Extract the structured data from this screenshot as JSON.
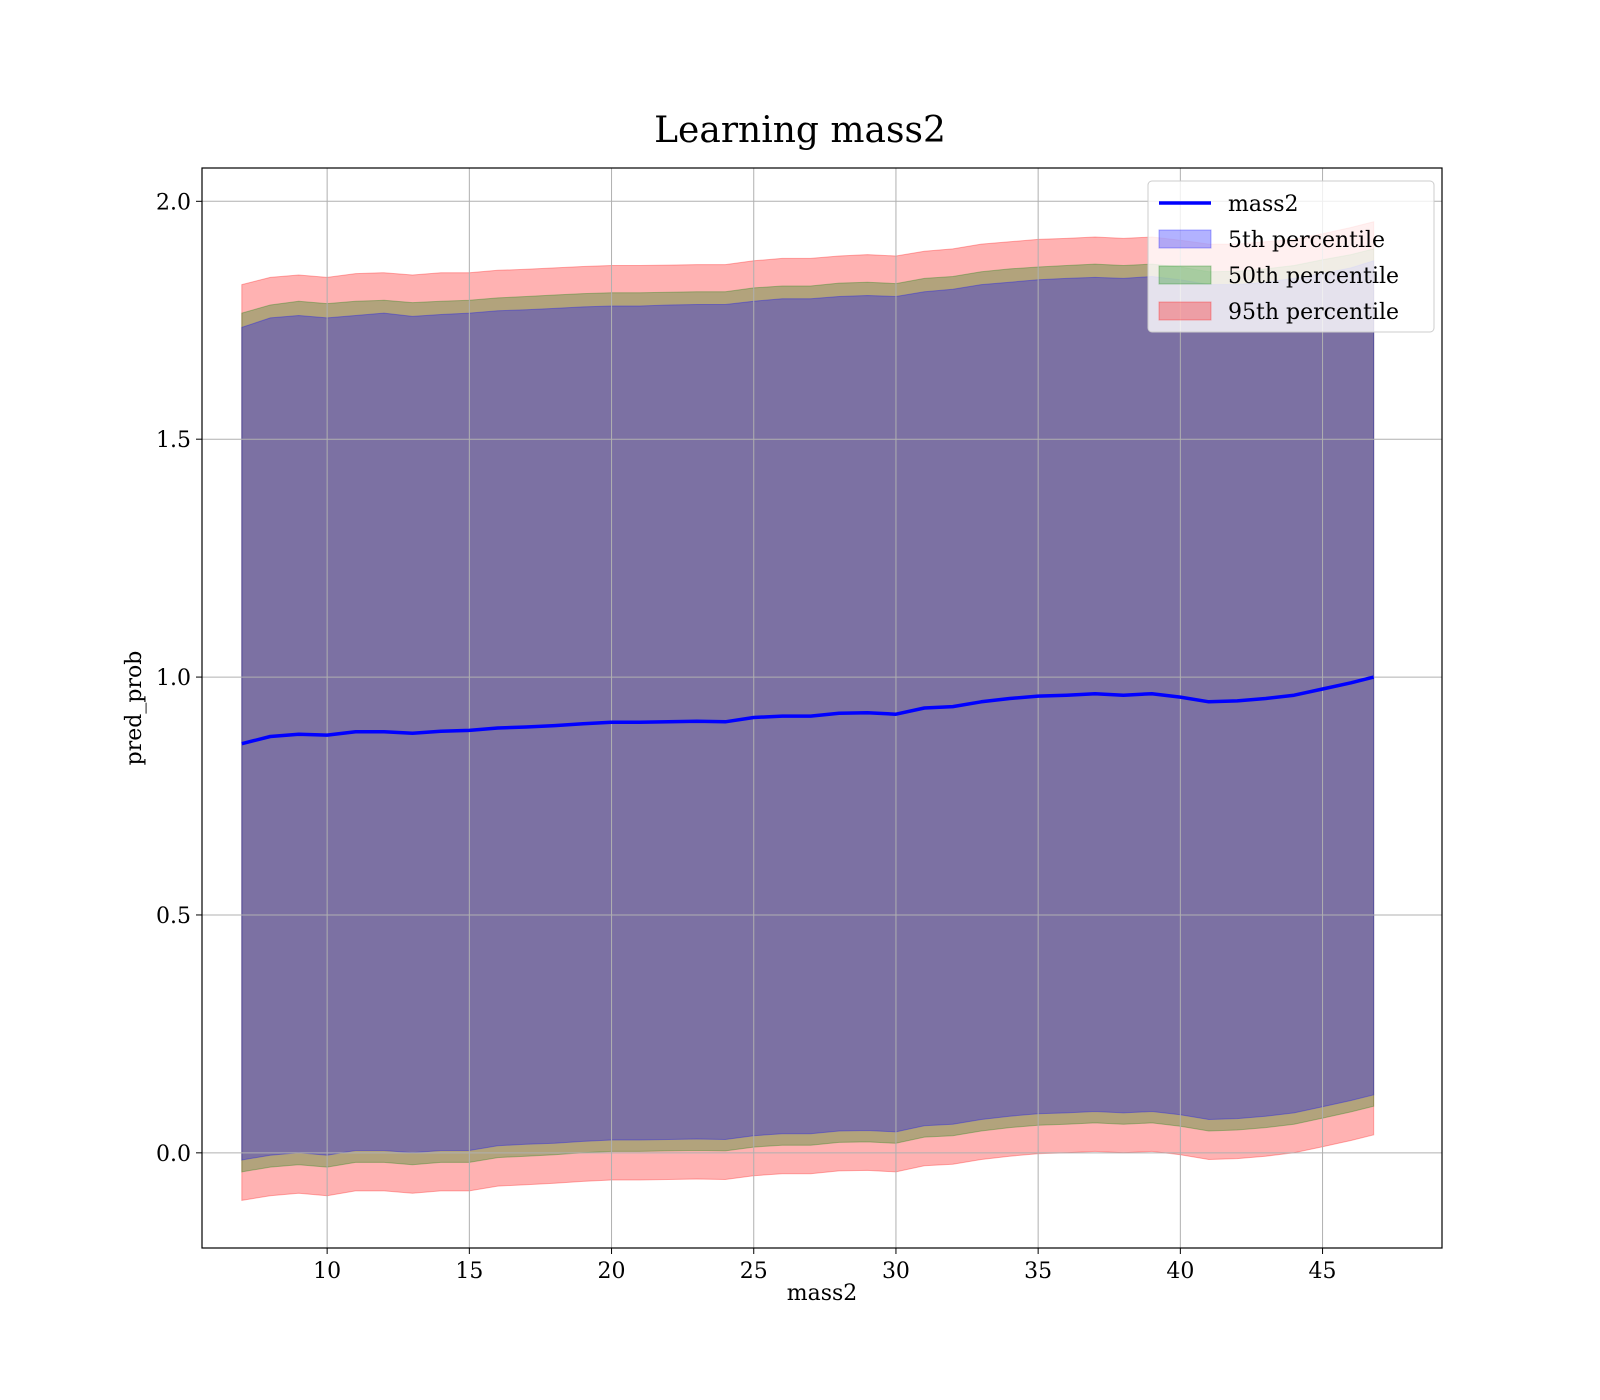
{
  "chart_data": {
    "type": "area",
    "title": "Learning mass2",
    "xlabel": "mass2",
    "ylabel": "pred_prob",
    "xlim": [
      5.6,
      49.2
    ],
    "ylim": [
      -0.2,
      2.07
    ],
    "xticks": [
      10,
      15,
      20,
      25,
      30,
      35,
      40,
      45
    ],
    "yticks": [
      0.0,
      0.5,
      1.0,
      1.5,
      2.0
    ],
    "grid": true,
    "legend_position": "top-right",
    "x": [
      7.0,
      8.0,
      9.0,
      10.0,
      11.0,
      12.0,
      13.0,
      14.0,
      15.0,
      16.0,
      17.0,
      18.0,
      19.0,
      20.0,
      21.0,
      22.0,
      23.0,
      24.0,
      25.0,
      26.0,
      27.0,
      28.0,
      29.0,
      30.0,
      31.0,
      32.0,
      33.0,
      34.0,
      35.0,
      36.0,
      37.0,
      38.0,
      39.0,
      40.0,
      41.0,
      42.0,
      43.0,
      44.0,
      45.0,
      46.0,
      46.8
    ],
    "series": [
      {
        "name": "mass2",
        "kind": "line",
        "color": "#0000ff",
        "values": [
          0.86,
          0.875,
          0.88,
          0.878,
          0.885,
          0.885,
          0.882,
          0.886,
          0.888,
          0.893,
          0.895,
          0.898,
          0.902,
          0.905,
          0.905,
          0.906,
          0.907,
          0.906,
          0.915,
          0.918,
          0.918,
          0.924,
          0.925,
          0.922,
          0.935,
          0.938,
          0.948,
          0.955,
          0.96,
          0.962,
          0.965,
          0.962,
          0.965,
          0.958,
          0.948,
          0.95,
          0.955,
          0.962,
          0.975,
          0.988,
          1.0
        ]
      },
      {
        "name": "5th percentile",
        "kind": "band",
        "color": "#0000ff",
        "upper": [
          1.735,
          1.755,
          1.76,
          1.755,
          1.76,
          1.765,
          1.758,
          1.762,
          1.765,
          1.77,
          1.772,
          1.775,
          1.778,
          1.78,
          1.78,
          1.782,
          1.783,
          1.783,
          1.79,
          1.795,
          1.795,
          1.8,
          1.802,
          1.8,
          1.81,
          1.815,
          1.825,
          1.83,
          1.835,
          1.838,
          1.84,
          1.838,
          1.842,
          1.835,
          1.825,
          1.825,
          1.83,
          1.838,
          1.848,
          1.86,
          1.875
        ],
        "lower": [
          -0.015,
          -0.005,
          0.0,
          -0.005,
          0.005,
          0.005,
          0.0,
          0.005,
          0.005,
          0.015,
          0.018,
          0.02,
          0.024,
          0.027,
          0.027,
          0.028,
          0.029,
          0.028,
          0.036,
          0.04,
          0.04,
          0.046,
          0.047,
          0.044,
          0.057,
          0.06,
          0.07,
          0.077,
          0.082,
          0.084,
          0.087,
          0.084,
          0.087,
          0.08,
          0.07,
          0.072,
          0.077,
          0.084,
          0.097,
          0.11,
          0.122
        ]
      },
      {
        "name": "50th percentile",
        "kind": "band",
        "color": "#008000",
        "upper": [
          1.765,
          1.782,
          1.79,
          1.785,
          1.79,
          1.792,
          1.787,
          1.79,
          1.792,
          1.797,
          1.8,
          1.803,
          1.806,
          1.808,
          1.808,
          1.809,
          1.81,
          1.81,
          1.818,
          1.822,
          1.822,
          1.828,
          1.83,
          1.827,
          1.838,
          1.842,
          1.852,
          1.858,
          1.862,
          1.865,
          1.868,
          1.865,
          1.868,
          1.862,
          1.852,
          1.853,
          1.858,
          1.865,
          1.877,
          1.888,
          1.9
        ],
        "lower": [
          -0.04,
          -0.03,
          -0.025,
          -0.03,
          -0.02,
          -0.02,
          -0.025,
          -0.02,
          -0.02,
          -0.01,
          -0.007,
          -0.004,
          0.0,
          0.003,
          0.003,
          0.004,
          0.005,
          0.004,
          0.012,
          0.016,
          0.016,
          0.022,
          0.023,
          0.02,
          0.033,
          0.036,
          0.046,
          0.053,
          0.058,
          0.06,
          0.063,
          0.06,
          0.063,
          0.056,
          0.046,
          0.048,
          0.053,
          0.06,
          0.073,
          0.086,
          0.098
        ]
      },
      {
        "name": "95th percentile",
        "kind": "band",
        "color": "#ff0000",
        "upper": [
          1.825,
          1.84,
          1.845,
          1.84,
          1.848,
          1.85,
          1.845,
          1.85,
          1.85,
          1.855,
          1.857,
          1.86,
          1.863,
          1.865,
          1.865,
          1.866,
          1.867,
          1.867,
          1.875,
          1.88,
          1.88,
          1.885,
          1.888,
          1.885,
          1.895,
          1.9,
          1.91,
          1.915,
          1.92,
          1.922,
          1.925,
          1.922,
          1.925,
          1.918,
          1.91,
          1.91,
          1.915,
          1.92,
          1.932,
          1.945,
          1.957
        ],
        "lower": [
          -0.1,
          -0.09,
          -0.085,
          -0.09,
          -0.08,
          -0.08,
          -0.085,
          -0.08,
          -0.08,
          -0.07,
          -0.067,
          -0.064,
          -0.06,
          -0.057,
          -0.057,
          -0.056,
          -0.055,
          -0.056,
          -0.048,
          -0.044,
          -0.044,
          -0.038,
          -0.037,
          -0.04,
          -0.027,
          -0.024,
          -0.014,
          -0.007,
          -0.002,
          0.0,
          0.003,
          0.0,
          0.003,
          -0.004,
          -0.014,
          -0.012,
          -0.007,
          0.0,
          0.013,
          0.026,
          0.038
        ]
      }
    ]
  }
}
